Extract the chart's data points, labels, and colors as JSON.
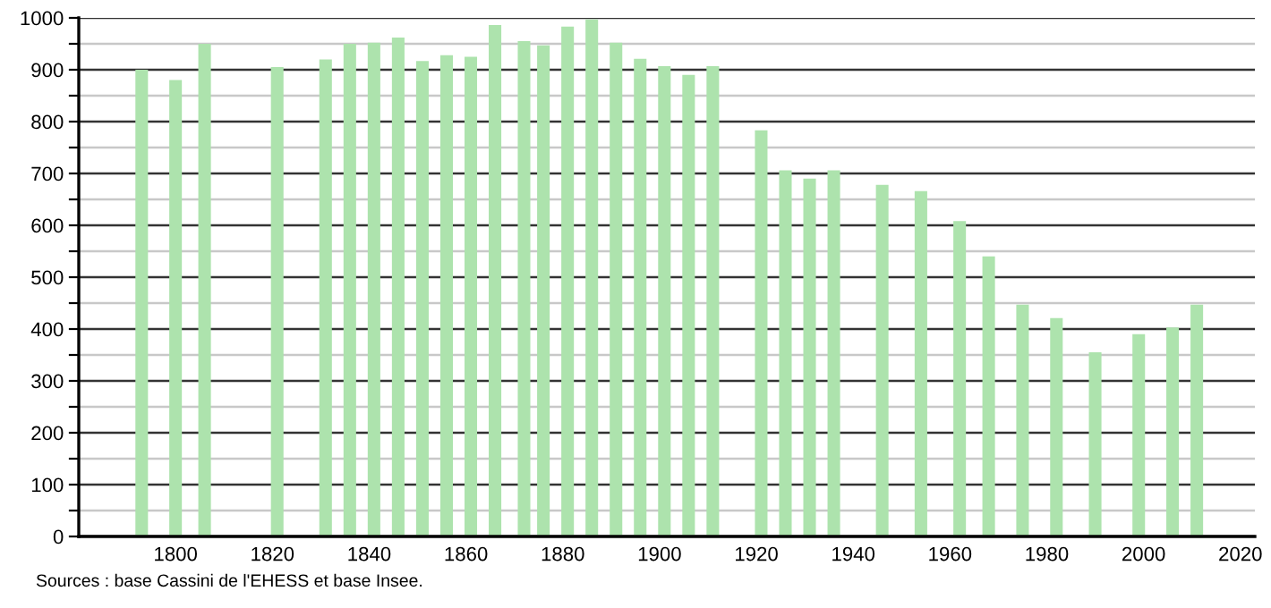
{
  "chart_data": {
    "type": "bar",
    "x": [
      1793,
      1800,
      1806,
      1821,
      1831,
      1836,
      1841,
      1846,
      1851,
      1856,
      1861,
      1866,
      1872,
      1876,
      1881,
      1886,
      1891,
      1896,
      1901,
      1906,
      1911,
      1921,
      1926,
      1931,
      1936,
      1946,
      1954,
      1962,
      1968,
      1975,
      1982,
      1990,
      1999,
      2006,
      2011
    ],
    "values": [
      900,
      880,
      950,
      905,
      920,
      950,
      952,
      962,
      917,
      928,
      925,
      986,
      955,
      947,
      983,
      997,
      952,
      921,
      907,
      890,
      907,
      783,
      706,
      690,
      706,
      678,
      666,
      608,
      540,
      447,
      421,
      355,
      390,
      403,
      447
    ],
    "color": "#ade3ad",
    "xlim": [
      1780,
      2023
    ],
    "xticks": [
      1800,
      1820,
      1840,
      1860,
      1880,
      1900,
      1920,
      1940,
      1960,
      1980,
      2000,
      2020
    ],
    "ylim": [
      0,
      1000
    ],
    "yticks": [
      0,
      {
        "value": 50,
        "label": null
      },
      100,
      {
        "value": 150,
        "label": null
      },
      200,
      {
        "value": 250,
        "label": null
      },
      300,
      {
        "value": 350,
        "label": null
      },
      400,
      {
        "value": 450,
        "label": null
      },
      500,
      {
        "value": 550,
        "label": null
      },
      600,
      {
        "value": 650,
        "label": null
      },
      700,
      {
        "value": 750,
        "label": null
      },
      800,
      {
        "value": 850,
        "label": null
      },
      900,
      {
        "value": 950,
        "label": null
      },
      1000
    ],
    "grid": "y",
    "annotations": [
      "Sources : base Cassini de l'EHESS et base Insee."
    ]
  }
}
